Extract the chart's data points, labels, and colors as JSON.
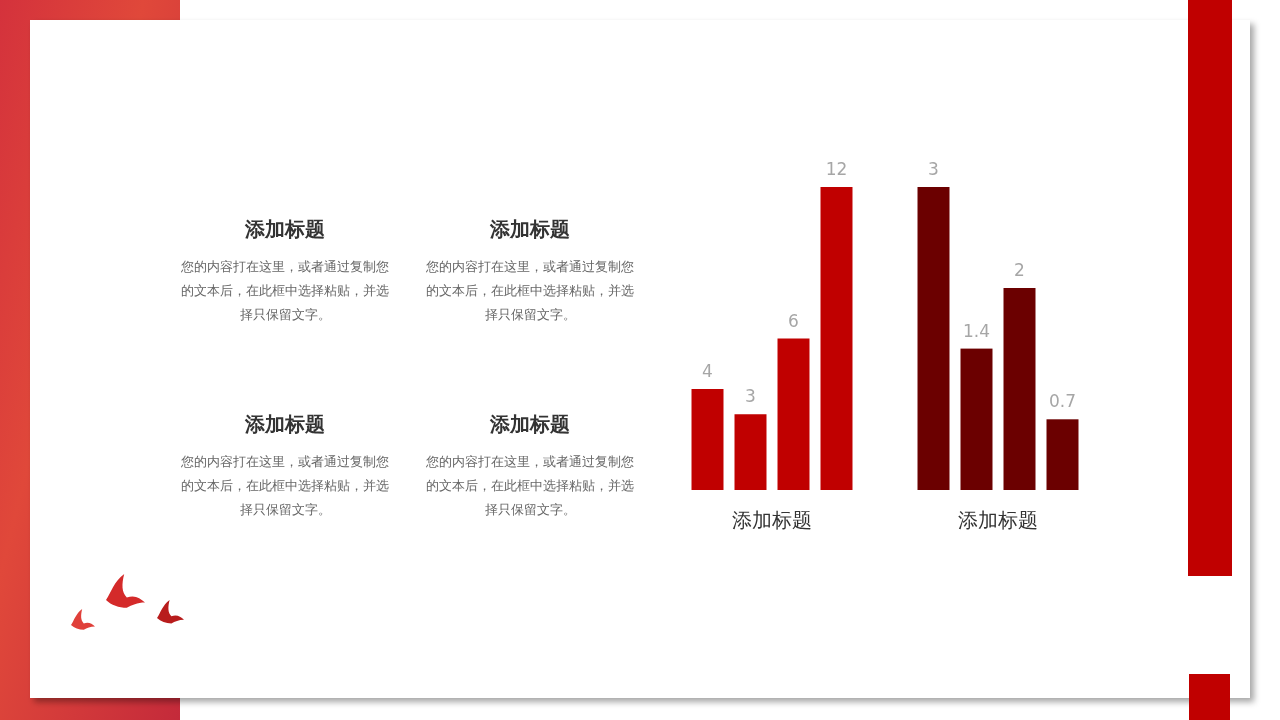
{
  "chart_data": [
    {
      "type": "other",
      "annotations": [
        "添加标题",
        "您的内容打在这里，或者通过复制您的文本后，在此框中选择粘贴，并选择只保留文字。",
        "添加标题",
        "您的内容打在这里，或者通过复制您的文本后，在此框中选择粘贴，并选择只保留文字。",
        "添加标题",
        "您的内容打在这里，或者通过复制您的文本后，在此框中选择粘贴，并选择只保留文字。",
        "添加标题",
        "您的内容打在这里，或者通过复制您的文本后，在此框中选择粘贴，并选择只保留文字。"
      ]
    },
    {
      "type": "bar",
      "xlabel": "添加标题",
      "categories": [
        null,
        null,
        null,
        null
      ],
      "values": [
        4,
        3,
        6,
        12
      ],
      "color": "#c00000",
      "ylim": [
        0,
        12
      ],
      "data_labels": true
    },
    {
      "type": "bar",
      "xlabel": "添加标题",
      "categories": [
        null,
        null,
        null,
        null
      ],
      "values": [
        3,
        1.4,
        2,
        0.7
      ],
      "color": "#6b0000",
      "ylim": [
        0,
        3
      ],
      "data_labels": true
    }
  ]
}
